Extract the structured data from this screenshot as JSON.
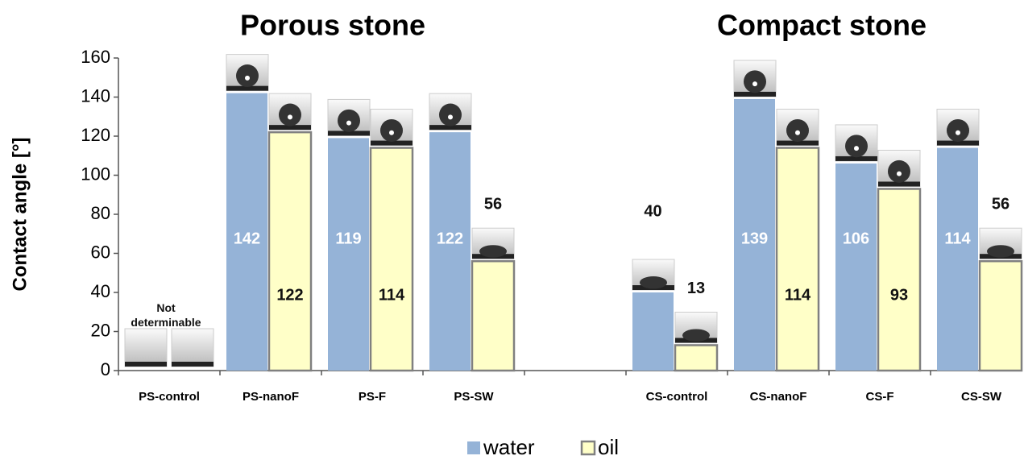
{
  "chart_data": {
    "type": "bar",
    "titles": [
      "Porous stone",
      "Compact stone"
    ],
    "ylabel": "Contact angle [°]",
    "annotation": "Not determinable",
    "categories": [
      "PS-control",
      "PS-nanoF",
      "PS-F",
      "PS-SW",
      null,
      "CS-control",
      "CS-nanoF",
      "CS-F",
      "CS-SW"
    ],
    "series": [
      {
        "name": "water",
        "color": "#95b3d7",
        "values": [
          null,
          142,
          119,
          122,
          null,
          40,
          139,
          106,
          114
        ]
      },
      {
        "name": "oil",
        "color": "#ffffc8",
        "edgecolor": "#808080",
        "values": [
          null,
          122,
          114,
          56,
          null,
          13,
          114,
          93,
          56
        ]
      }
    ],
    "ylim": [
      0,
      160
    ],
    "yticks": [
      0,
      20,
      40,
      60,
      80,
      100,
      120,
      140,
      160
    ],
    "legend": "bottom"
  }
}
